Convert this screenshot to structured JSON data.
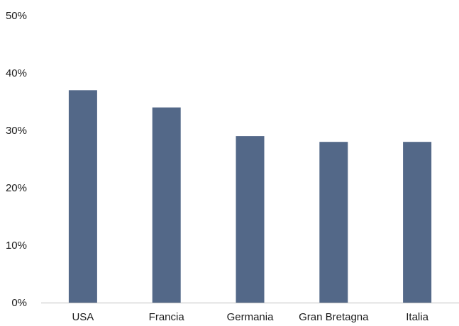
{
  "chart_data": {
    "type": "bar",
    "title": "",
    "xlabel": "",
    "ylabel": "",
    "categories": [
      "USA",
      "Francia",
      "Germania",
      "Gran Bretagna",
      "Italia"
    ],
    "values": [
      37,
      34,
      29,
      28,
      28
    ],
    "ylim": [
      0,
      50
    ],
    "yticks": [
      0,
      10,
      20,
      30,
      40,
      50
    ],
    "ytick_labels": [
      "0%",
      "10%",
      "20%",
      "30%",
      "40%",
      "50%"
    ],
    "grid": false,
    "legend": "none",
    "bar_color": "#536888",
    "axis_color": "#bfbfbf"
  }
}
